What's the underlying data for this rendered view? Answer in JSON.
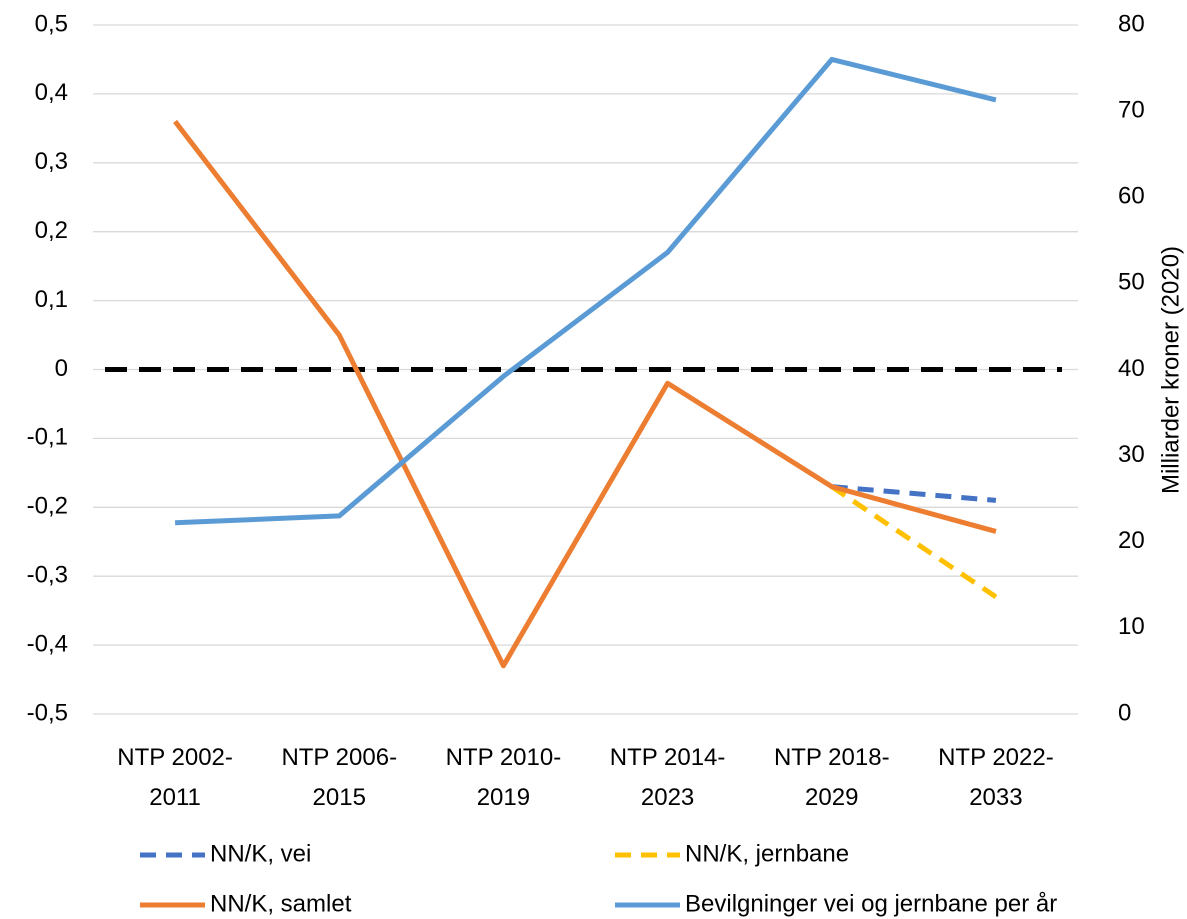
{
  "chart_data": {
    "type": "line",
    "categories": [
      "NTP 2002-2011",
      "NTP 2006-2015",
      "NTP 2010-2019",
      "NTP 2014-2023",
      "NTP 2018-2029",
      "NTP 2022-2033"
    ],
    "series": [
      {
        "name": "NN/K, vei",
        "color": "#4472c4",
        "dashed": true,
        "values": [
          null,
          null,
          null,
          null,
          -0.17,
          -0.19
        ]
      },
      {
        "name": "NN/K, jernbane",
        "color": "#ffc000",
        "dashed": true,
        "values": [
          null,
          null,
          null,
          null,
          -0.17,
          -0.33
        ]
      },
      {
        "name": "NN/K, samlet",
        "color": "#ed7d31",
        "dashed": false,
        "values": [
          0.36,
          0.05,
          -0.43,
          -0.02,
          -0.17,
          -0.235
        ]
      },
      {
        "name": "Bevilgninger vei og jernbane per år",
        "color": "#5b9bd5",
        "dashed": false,
        "axis": "y2",
        "values": [
          22.2,
          23,
          39.2,
          53.6,
          76,
          71.3
        ]
      }
    ],
    "reference_line": {
      "value": 0,
      "color": "#000000",
      "dashed": true
    },
    "ylim": [
      -0.5,
      0.5
    ],
    "yticks": [
      {
        "value": -0.5,
        "label": "-0,5"
      },
      {
        "value": -0.4,
        "label": "-0,4"
      },
      {
        "value": -0.3,
        "label": "-0,3"
      },
      {
        "value": -0.2,
        "label": "-0,2"
      },
      {
        "value": -0.1,
        "label": "-0,1"
      },
      0,
      {
        "value": 0.1,
        "label": "0,1"
      },
      {
        "value": 0.2,
        "label": "0,2"
      },
      {
        "value": 0.3,
        "label": "0,3"
      },
      {
        "value": 0.4,
        "label": "0,4"
      },
      {
        "value": 0.5,
        "label": "0,5"
      }
    ],
    "y2lim": [
      0,
      80
    ],
    "y2ticks": [
      0,
      10,
      20,
      30,
      40,
      50,
      60,
      70,
      80
    ],
    "y2label": "Milliarder kroner (2020)",
    "grid": true
  }
}
